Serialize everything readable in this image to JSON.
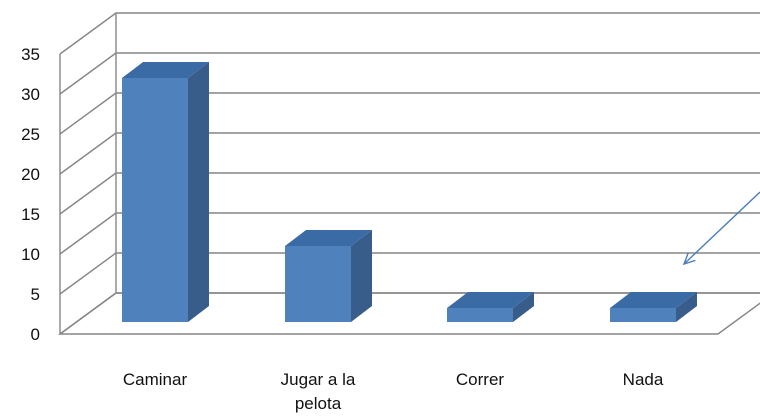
{
  "chart_data": {
    "type": "bar",
    "title": "",
    "xlabel": "",
    "ylabel": "",
    "categories": [
      "Caminar",
      "Jugar a la pelota",
      "Correr",
      "Nada"
    ],
    "category_lines": [
      [
        "Caminar"
      ],
      [
        "Jugar a la",
        "pelota"
      ],
      [
        "Correr"
      ],
      [
        "Nada"
      ]
    ],
    "values": [
      32,
      11,
      2,
      2
    ],
    "ylim": [
      0,
      35
    ],
    "yticks": [
      0,
      5,
      10,
      15,
      20,
      25,
      30,
      35
    ],
    "ytick_labels": [
      "0",
      "5",
      "10",
      "15",
      "20",
      "25",
      "30",
      "35"
    ],
    "grid": true,
    "legend": "none",
    "style": "3d-column",
    "colors": {
      "bar_front": "#4f81bd",
      "bar_top": "#3b6ba5",
      "bar_side": "#385d8a",
      "grid": "#868686",
      "arrow": "#4a7ebb"
    },
    "annotations": [
      {
        "type": "arrow",
        "points_to": "Nada",
        "text": ""
      }
    ]
  }
}
